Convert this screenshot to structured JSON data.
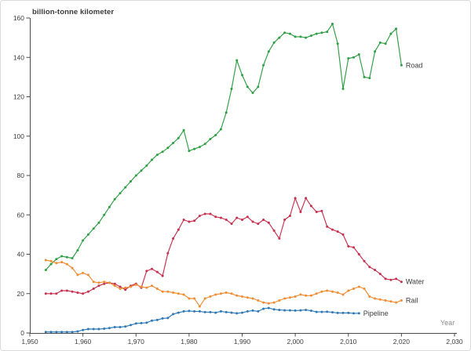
{
  "figure": {
    "title": "billion-tonne kilometer",
    "x_axis_label": "Year"
  },
  "axis": {
    "text_color": "#3d3d3d",
    "line_color": "#4a4a4a",
    "x_tick_format": "comma"
  },
  "chart_data": {
    "type": "line",
    "title": "billion-tonne kilometer",
    "xlabel": "Year",
    "ylabel": "billion-tonne kilometer",
    "xlim": [
      1950,
      2030
    ],
    "ylim": [
      0,
      160
    ],
    "x_ticks": [
      1950,
      1960,
      1970,
      1980,
      1990,
      2000,
      2010,
      2020,
      2030
    ],
    "y_ticks": [
      0,
      20,
      40,
      60,
      80,
      100,
      120,
      140,
      160
    ],
    "grid": false,
    "legend_position": "end-of-line-labels",
    "marker": "dot",
    "series": [
      {
        "name": "Road",
        "color": "#2f9e44",
        "start_year": 1953,
        "values": [
          32,
          35,
          37.5,
          39,
          38.5,
          38,
          42,
          47,
          50,
          53,
          56,
          60,
          64,
          68,
          71,
          74,
          77,
          80,
          82.5,
          85,
          88,
          90.5,
          92,
          94,
          96.5,
          99,
          103,
          92.5,
          93.5,
          94.5,
          96,
          98.5,
          100.5,
          103.5,
          112,
          124,
          138.5,
          131,
          125,
          122,
          125,
          136,
          143,
          147.5,
          150,
          152.5,
          152,
          150.5,
          150.5,
          150,
          151,
          152,
          152.5,
          153,
          157,
          147,
          124,
          139.5,
          140,
          141.5,
          130,
          129.5,
          143,
          147.5,
          147,
          152,
          154.5,
          136
        ]
      },
      {
        "name": "Water",
        "color": "#c6304e",
        "start_year": 1953,
        "values": [
          20,
          20,
          20,
          21.5,
          21.5,
          21,
          20.5,
          20,
          21,
          22.5,
          24,
          25,
          25.5,
          25,
          23.5,
          22,
          24,
          25,
          23,
          31.5,
          32.5,
          31,
          29,
          40.5,
          48,
          52.5,
          57.5,
          56.5,
          57,
          59.5,
          60.5,
          60.5,
          59,
          58.5,
          57.5,
          55.5,
          58.5,
          57.5,
          59,
          56.5,
          55.5,
          57.5,
          56,
          52,
          48,
          57.5,
          59.5,
          68.5,
          61.5,
          68.5,
          64.5,
          61.5,
          62,
          54,
          52.5,
          51.5,
          50,
          44,
          43.5,
          40,
          36.5,
          33.5,
          32,
          30,
          27.5,
          27,
          27.5,
          26
        ]
      },
      {
        "name": "Rail",
        "color": "#ef8d33",
        "start_year": 1953,
        "values": [
          37,
          36.5,
          35.5,
          36,
          35,
          33,
          29.5,
          30.5,
          29.5,
          26,
          25.5,
          26,
          25.5,
          24,
          22.5,
          23,
          23.5,
          24.5,
          23.5,
          23,
          24,
          22.5,
          21,
          21,
          20.5,
          20,
          19.5,
          17.5,
          17.5,
          13.5,
          17.5,
          18.5,
          19.5,
          20,
          20.5,
          20,
          19,
          18.5,
          18,
          17.5,
          16.5,
          15.5,
          15,
          15.5,
          16.5,
          17.5,
          18,
          18.5,
          19.5,
          19,
          19,
          20,
          21,
          21.5,
          21,
          20.5,
          19.5,
          21.5,
          22.5,
          23.5,
          22.5,
          18.5,
          17.5,
          17,
          16.5,
          16,
          15.5,
          16.5
        ]
      },
      {
        "name": "Pipeline",
        "color": "#2e79b5",
        "start_year": 1953,
        "values": [
          0.5,
          0.5,
          0.5,
          0.5,
          0.5,
          0.5,
          0.8,
          1.5,
          2,
          2,
          2,
          2.2,
          2.5,
          3,
          3,
          3.3,
          4,
          4.8,
          5,
          5.2,
          6.3,
          6.6,
          7.4,
          7.6,
          9.6,
          10.3,
          11,
          11.2,
          11,
          11,
          10.6,
          10.6,
          10.3,
          11,
          10.6,
          10.3,
          10,
          10.3,
          11,
          11.4,
          11,
          12.3,
          12.7,
          12,
          11.7,
          11.5,
          11.5,
          11.4,
          11.5,
          11.7,
          11.3,
          10.7,
          10.7,
          10.8,
          10.5,
          10.2,
          10.2,
          10.2,
          10,
          10
        ]
      }
    ]
  }
}
